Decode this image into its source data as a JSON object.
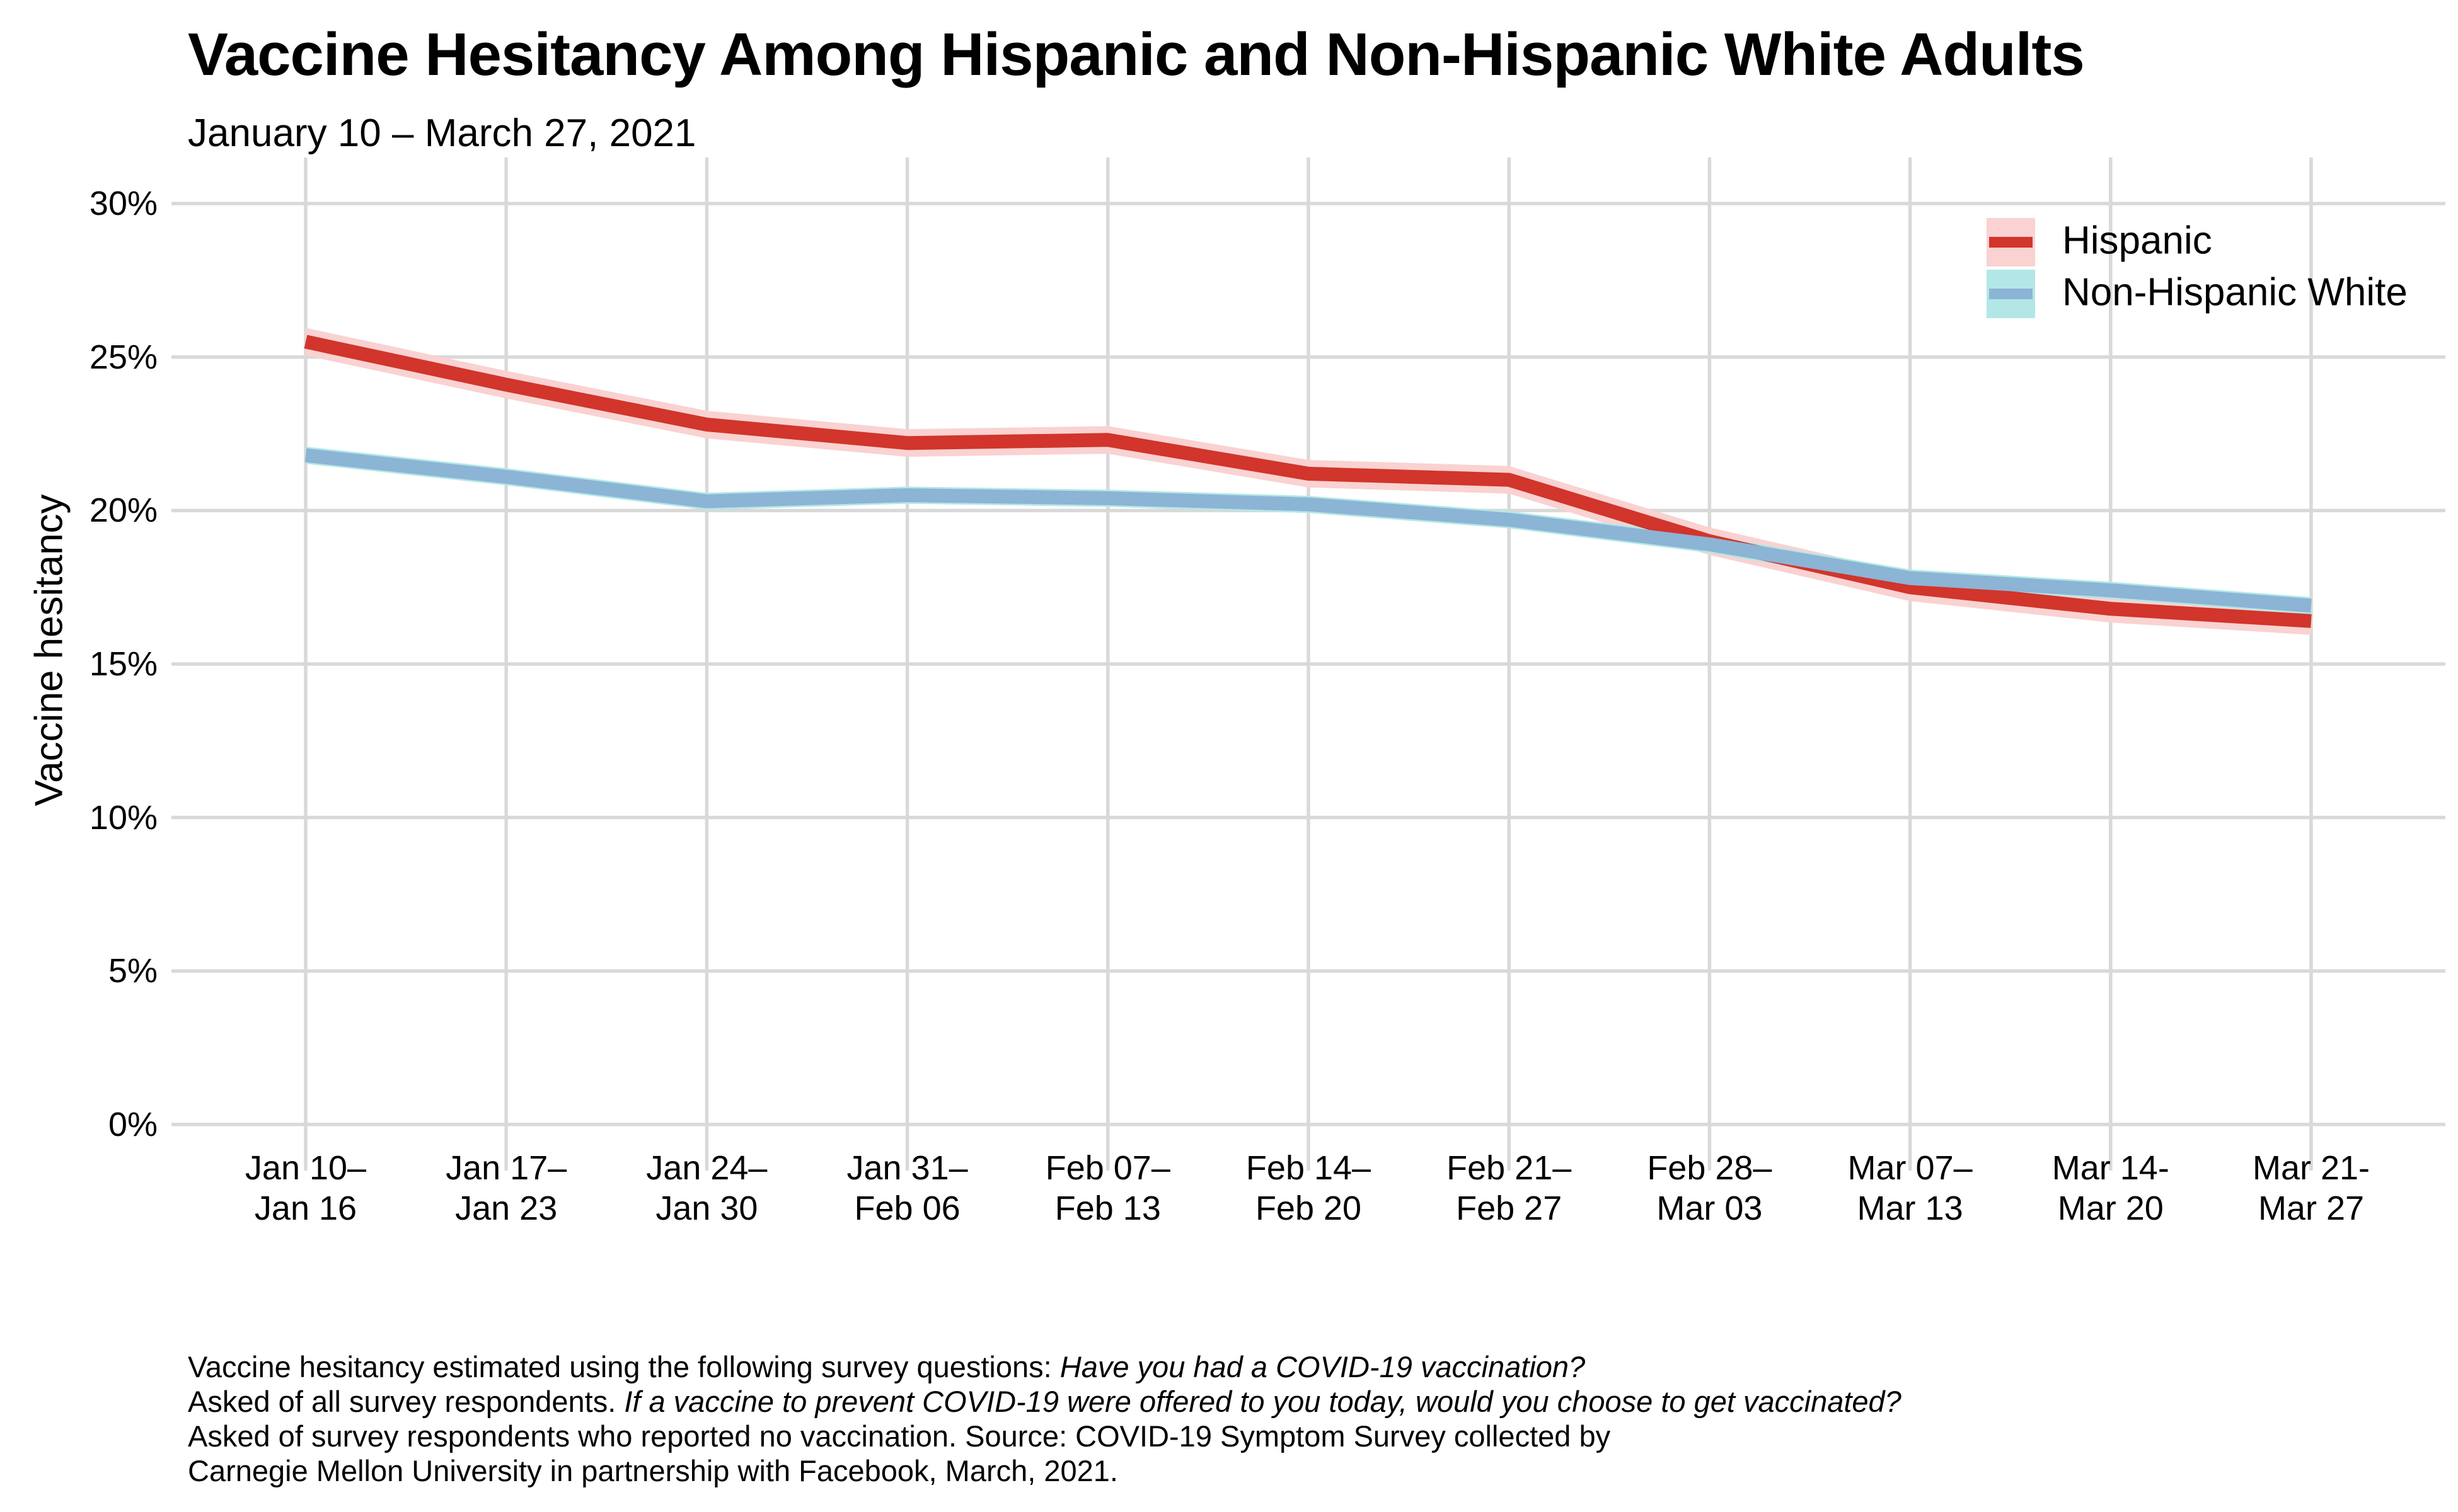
{
  "title": "Vaccine Hesitancy Among Hispanic and Non-Hispanic White Adults",
  "subtitle": "January 10 – March 27, 2021",
  "colors": {
    "background": "#ffffff",
    "gridline": "#d9d9d9",
    "text": "#000000",
    "hispanic_line": "#d1352b",
    "hispanic_band": "#f9d2d1",
    "nhw_line": "#8cb4d5",
    "nhw_band": "#b3e7e7"
  },
  "legend": {
    "position": "top-right",
    "entries": [
      {
        "label": "Hispanic",
        "line_color": "#d1352b",
        "band_color": "#f9d2d1"
      },
      {
        "label": "Non-Hispanic White",
        "line_color": "#8cb4d5",
        "band_color": "#b3e7e7"
      }
    ]
  },
  "chart_data": {
    "type": "line",
    "title": "Vaccine Hesitancy Among Hispanic and Non-Hispanic White Adults",
    "subtitle": "January 10 – March 27, 2021",
    "xlabel": "",
    "ylabel": "Vaccine hesitancy",
    "ylim": [
      0,
      30
    ],
    "y_expansion": 1.5,
    "y_ticks": [
      0,
      5,
      10,
      15,
      20,
      25,
      30
    ],
    "y_tick_labels": [
      "0%",
      "5%",
      "10%",
      "15%",
      "20%",
      "25%",
      "30%"
    ],
    "grid": true,
    "legend_position": "top-right",
    "categories": [
      [
        "Jan 10–",
        "Jan 16"
      ],
      [
        "Jan 17–",
        "Jan 23"
      ],
      [
        "Jan 24–",
        "Jan 30"
      ],
      [
        "Jan 31–",
        "Feb 06"
      ],
      [
        "Feb 07–",
        "Feb 13"
      ],
      [
        "Feb 14–",
        "Feb 20"
      ],
      [
        "Feb 21–",
        "Feb 27"
      ],
      [
        "Feb 28–",
        "Mar 03"
      ],
      [
        "Mar 07–",
        "Mar 13"
      ],
      [
        "Mar 14-",
        "Mar 20"
      ],
      [
        "Mar 21-",
        "Mar 27"
      ]
    ],
    "series": [
      {
        "name": "Hispanic",
        "values": [
          25.5,
          24.1,
          22.8,
          22.2,
          22.3,
          21.2,
          21.0,
          19.0,
          17.5,
          16.8,
          16.4
        ],
        "ci_half_width": 0.45,
        "line_color": "#d1352b",
        "band_color": "#f9d2d1"
      },
      {
        "name": "Non-Hispanic White",
        "values": [
          21.8,
          21.1,
          20.3,
          20.5,
          20.4,
          20.2,
          19.7,
          18.9,
          17.8,
          17.4,
          16.9
        ],
        "ci_half_width": 0.28,
        "line_color": "#8cb4d5",
        "band_color": "#b3e7e7"
      }
    ]
  },
  "caption": {
    "lines": [
      [
        {
          "text": "Vaccine hesitancy estimated using the following survey questions: ",
          "italic": false
        },
        {
          "text": "Have you had a COVID-19 vaccination?",
          "italic": true
        }
      ],
      [
        {
          "text": "Asked of all survey respondents. ",
          "italic": false
        },
        {
          "text": "If a vaccine to prevent COVID-19 were offered to you today, would you choose to get vaccinated?",
          "italic": true
        }
      ],
      [
        {
          "text": "Asked of survey respondents who reported no vaccination. Source: COVID-19 Symptom Survey collected by",
          "italic": false
        }
      ],
      [
        {
          "text": "Carnegie Mellon University in partnership with Facebook, March, 2021.",
          "italic": false
        }
      ]
    ]
  }
}
